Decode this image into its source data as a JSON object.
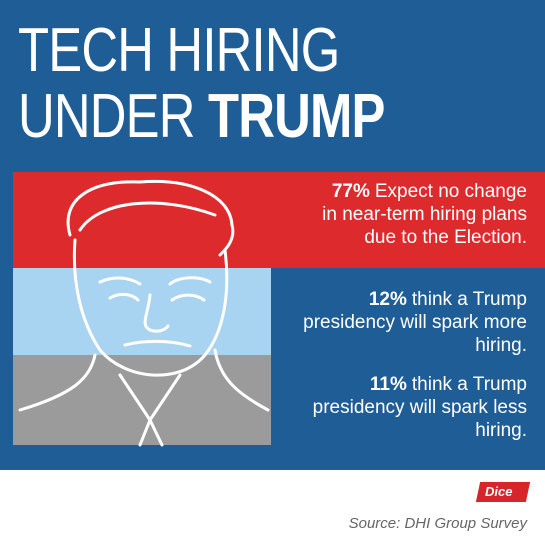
{
  "title": {
    "line1": "TECH HIRING",
    "line2_regular": "UNDER",
    "line2_bold": "TRUMP"
  },
  "stats": [
    {
      "highlight": "77%",
      "lines": [
        "Expect no change",
        "in near-term hiring plans",
        "due to the Election."
      ]
    },
    {
      "highlight": "12%",
      "lines": [
        "think a Trump",
        "presidency will spark more",
        "hiring."
      ]
    },
    {
      "highlight": "11%",
      "lines": [
        "think a Trump",
        "presidency will spark less",
        "hiring."
      ]
    }
  ],
  "logo": "Dice",
  "source": "Source: DHI Group Survey"
}
